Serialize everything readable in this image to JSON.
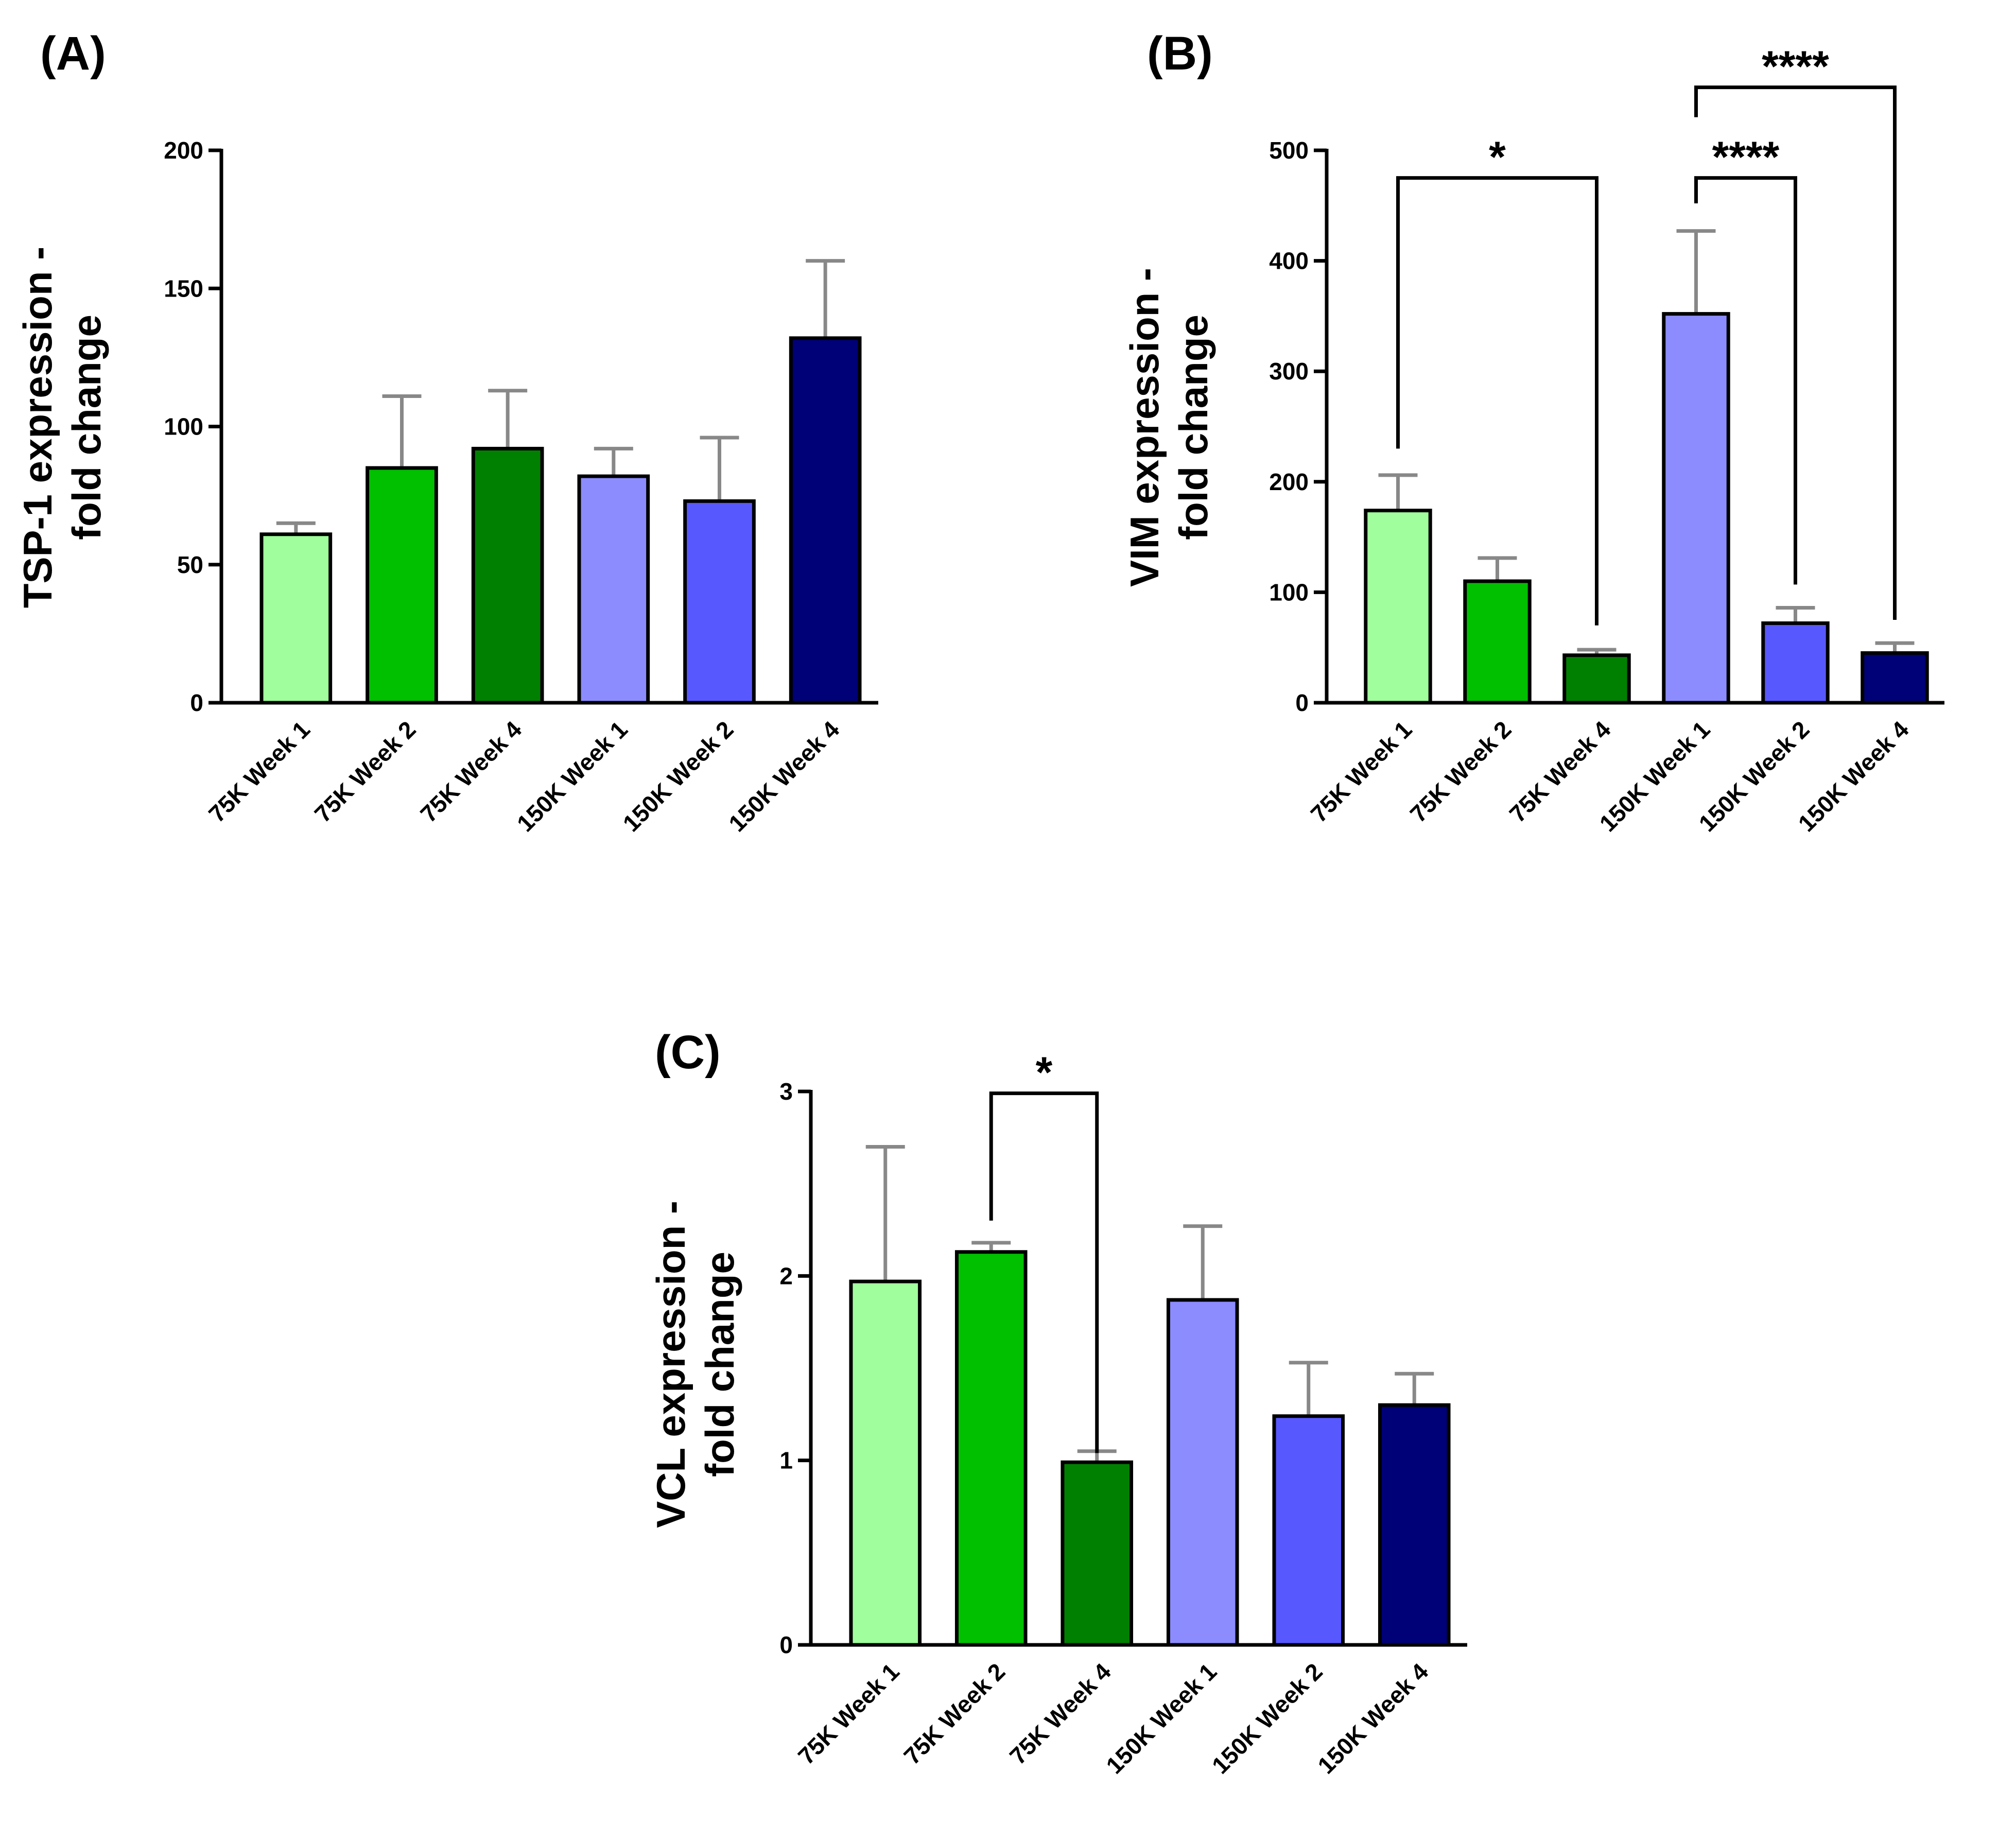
{
  "chart_data": [
    {
      "type": "bar",
      "panel": "(A)",
      "ylabel": [
        "TSP-1 expression -",
        "fold change"
      ],
      "categories": [
        "75K Week 1",
        "75K Week 2",
        "75K Week 4",
        "150K Week 1",
        "150K Week 2",
        "150K Week 4"
      ],
      "values": [
        61,
        85,
        92,
        82,
        73,
        132
      ],
      "errors": [
        4,
        26,
        21,
        10,
        23,
        28
      ],
      "colors": [
        "#a0ff9c",
        "#00c000",
        "#008000",
        "#8c8cff",
        "#5858ff",
        "#000077"
      ],
      "yticks": [
        0,
        50,
        100,
        150,
        200
      ],
      "ylim": [
        0,
        200
      ],
      "significance": []
    },
    {
      "type": "bar",
      "panel": "(B)",
      "ylabel": [
        "VIM expression -",
        "fold change"
      ],
      "categories": [
        "75K Week 1",
        "75K Week 2",
        "75K Week 4",
        "150K Week 1",
        "150K Week 2",
        "150K Week 4"
      ],
      "values": [
        174,
        110,
        43,
        352,
        72,
        45
      ],
      "errors": [
        32,
        21,
        5,
        75,
        14,
        9
      ],
      "colors": [
        "#a0ff9c",
        "#00c000",
        "#008000",
        "#8c8cff",
        "#5858ff",
        "#000077"
      ],
      "yticks": [
        0,
        100,
        200,
        300,
        400,
        500
      ],
      "ylim": [
        0,
        500
      ],
      "significance": [
        {
          "from": 0,
          "to": 2,
          "label": "*",
          "level": 475,
          "from_end": 230,
          "to_end": 70
        },
        {
          "from": 3,
          "to": 4,
          "label": "****",
          "level": 475,
          "from_end": 452,
          "to_end": 107
        },
        {
          "from": 3,
          "to": 5,
          "label": "****",
          "level": 557,
          "from_end": 530,
          "to_end": 75
        }
      ]
    },
    {
      "type": "bar",
      "panel": "(C)",
      "ylabel": [
        "VCL expression -",
        "fold change"
      ],
      "categories": [
        "75K Week 1",
        "75K Week 2",
        "75K Week 4",
        "150K Week 1",
        "150K Week 2",
        "150K Week 4"
      ],
      "values": [
        1.97,
        2.13,
        0.99,
        1.87,
        1.24,
        1.3
      ],
      "errors": [
        0.73,
        0.05,
        0.06,
        0.4,
        0.29,
        0.17
      ],
      "colors": [
        "#a0ff9c",
        "#00c000",
        "#008000",
        "#8c8cff",
        "#5858ff",
        "#000077"
      ],
      "yticks": [
        0,
        1,
        2,
        3
      ],
      "ylim": [
        0,
        3
      ],
      "significance": [
        {
          "from": 1,
          "to": 2,
          "label": "*",
          "level": 2.99,
          "from_end": 2.3,
          "to_end": 1.04
        }
      ]
    }
  ]
}
